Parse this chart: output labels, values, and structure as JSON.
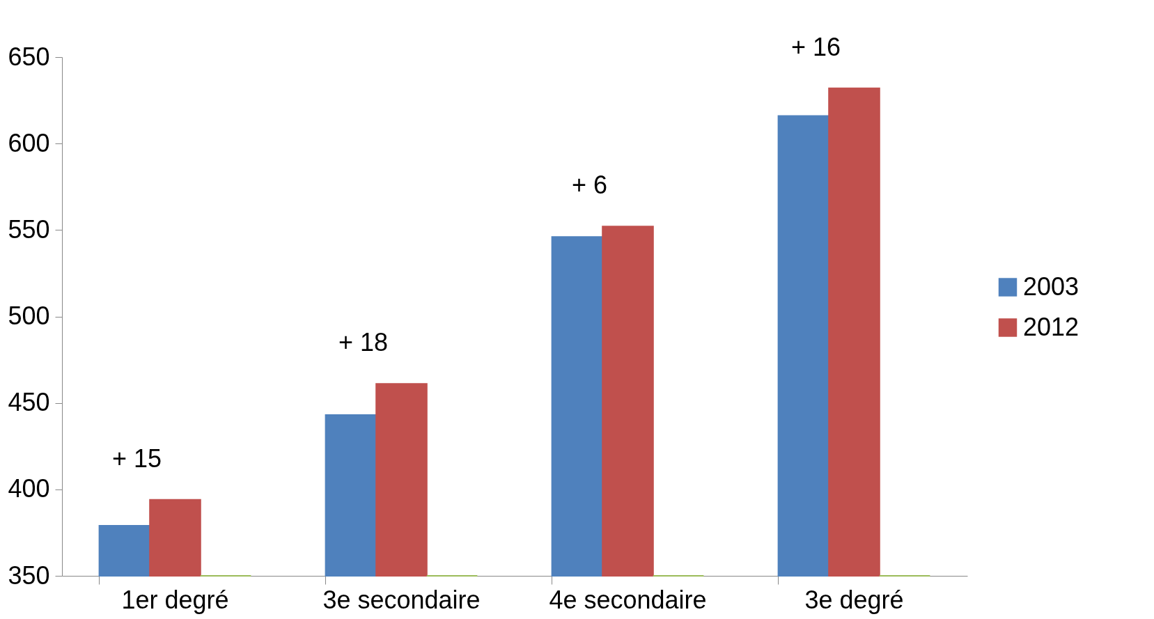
{
  "chart_data": {
    "type": "bar",
    "categories": [
      "1er degré",
      "3e secondaire",
      "4e secondaire",
      "3e degré"
    ],
    "series": [
      {
        "name": "2003",
        "color": "#4f81bd",
        "values": [
          379,
          443,
          546,
          616
        ]
      },
      {
        "name": "2012",
        "color": "#c0504d",
        "values": [
          394,
          461,
          552,
          632
        ]
      },
      {
        "color": "#9bbb59",
        "values": [
          350,
          350,
          350,
          350
        ]
      }
    ],
    "ylim": [
      350,
      650
    ],
    "yticks": [
      350,
      400,
      450,
      500,
      550,
      600,
      650
    ],
    "grid": false,
    "legend": "right",
    "annotations": [
      "+ 15",
      "+ 18",
      "+ 6",
      "+ 16"
    ]
  }
}
